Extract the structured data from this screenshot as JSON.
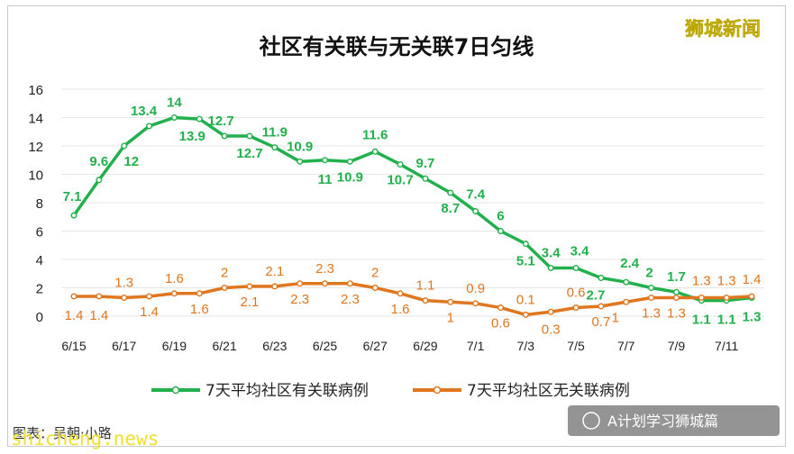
{
  "watermark_top": "狮城新闻",
  "credit_text": "图表：吴朝·小路",
  "brand_text": "shicheng.news",
  "wechat_text": "A计划学习狮城篇",
  "colors": {
    "green": "#22b04c",
    "orange": "#e0761e",
    "grid": "#e6e6e6"
  },
  "chart_data": {
    "type": "line",
    "title": "社区有关联与无关联7日匀线",
    "xlabel": "",
    "ylabel": "",
    "ylim": [
      0,
      16
    ],
    "yticks": [
      "0",
      "2",
      "4",
      "6",
      "8",
      "10",
      "12",
      "14",
      "16"
    ],
    "grid": true,
    "legend_position": "bottom",
    "x": [
      "6/15",
      "6/16",
      "6/17",
      "6/18",
      "6/19",
      "6/20",
      "6/21",
      "6/22",
      "6/23",
      "6/24",
      "6/25",
      "6/26",
      "6/27",
      "6/28",
      "6/29",
      "6/30",
      "7/1",
      "7/2",
      "7/3",
      "7/4",
      "7/5",
      "7/6",
      "7/7",
      "7/8",
      "7/9",
      "7/10",
      "7/11",
      "7/12"
    ],
    "xtick_labels": [
      "6/15",
      "6/17",
      "6/19",
      "6/21",
      "6/23",
      "6/25",
      "6/27",
      "6/29",
      "7/1",
      "7/3",
      "7/5",
      "7/7",
      "7/9",
      "7/11"
    ],
    "series": [
      {
        "name": "7天平均社区有关联病例",
        "color": "#22b04c",
        "values": [
          7.1,
          9.6,
          12,
          13.4,
          14,
          13.9,
          12.7,
          12.7,
          11.9,
          10.9,
          11,
          10.9,
          11.6,
          10.7,
          9.7,
          8.7,
          7.4,
          6,
          5.1,
          3.4,
          3.4,
          2.7,
          2.4,
          2,
          1.7,
          1.1,
          1.1,
          1.3
        ],
        "labels": [
          "7.1",
          "9.6",
          "12",
          "13.4",
          "14",
          "13.9",
          "12.7",
          "12.7",
          "11.9",
          "10.9",
          "11",
          "10.9",
          "11.6",
          "10.7",
          "9.7",
          "8.7",
          "7.4",
          "6",
          "5.1",
          "3.4",
          "3.4",
          "2.7",
          "2.4",
          "2",
          "1.7",
          "1.1",
          "1.1",
          "1.3"
        ]
      },
      {
        "name": "7天平均社区无关联病例",
        "color": "#e0761e",
        "values": [
          1.4,
          1.4,
          1.3,
          1.4,
          1.6,
          1.6,
          2,
          2.1,
          2.1,
          2.3,
          2.3,
          2.3,
          2,
          1.6,
          1.1,
          1,
          0.9,
          0.6,
          0.1,
          0.3,
          0.6,
          0.7,
          1,
          1.3,
          1.3,
          1.3,
          1.3,
          1.4
        ],
        "labels": [
          "1.4",
          "1.4",
          "1.3",
          "1.4",
          "1.6",
          "1.6",
          "2",
          "2.1",
          "2.1",
          "2.3",
          "2.3",
          "2.3",
          "2",
          "1.6",
          "1.1",
          "1",
          "0.9",
          "0.6",
          "0.1",
          "0.3",
          "0.6",
          "0.7",
          "1",
          "1.3",
          "1.3",
          "1.3",
          "1.3",
          "1.4"
        ]
      }
    ]
  }
}
